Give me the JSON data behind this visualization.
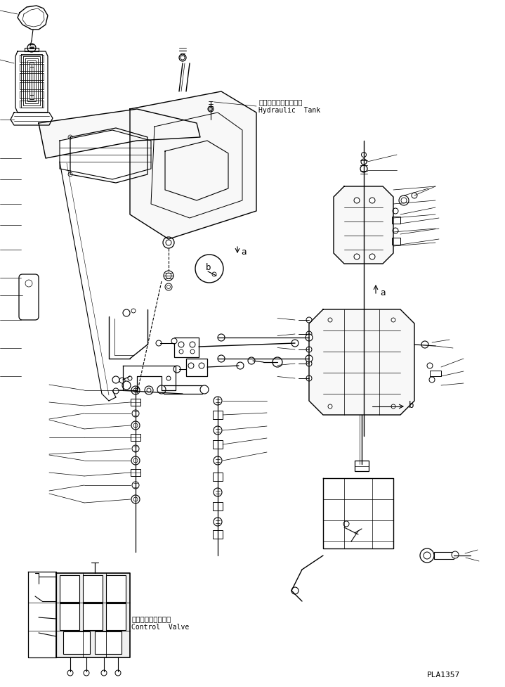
{
  "background_color": "#ffffff",
  "line_color": "#000000",
  "page_id": "PLA1357",
  "label_hydraulic_tank_jp": "ハイドロリックタンク",
  "label_hydraulic_tank_en": "Hydraulic  Tank",
  "label_control_valve_jp": "コントロールバルブ",
  "label_control_valve_en": "Control  Valve",
  "label_a1": "a",
  "label_b1": "b",
  "label_a2": "a",
  "label_b2": "b",
  "fig_width": 7.19,
  "fig_height": 9.77,
  "dpi": 100
}
